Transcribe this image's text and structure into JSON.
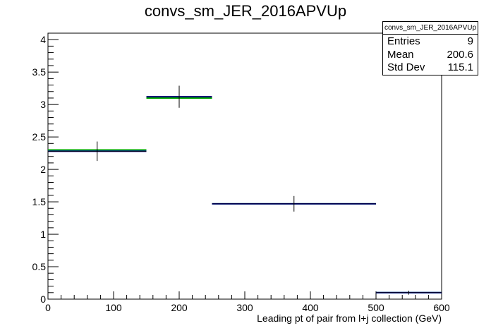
{
  "chart_data": {
    "type": "histogram",
    "title": "convs_sm_JER_2016APVUp",
    "xlabel": "Leading pt of pair from l+j collection (GeV)",
    "ylabel": "",
    "xlim": [
      0,
      600
    ],
    "ylim": [
      0,
      4.1
    ],
    "x_ticks": [
      0,
      100,
      200,
      300,
      400,
      500,
      600
    ],
    "y_ticks": [
      0,
      0.5,
      1,
      1.5,
      2,
      2.5,
      3,
      3.5,
      4
    ],
    "x_tick_labels": [
      "0",
      "100",
      "200",
      "300",
      "400",
      "500",
      "600"
    ],
    "y_tick_labels": [
      "0",
      "0.5",
      "1",
      "1.5",
      "2",
      "2.5",
      "3",
      "3.5",
      "4"
    ],
    "grid": false,
    "bins": [
      {
        "x_low": 0,
        "x_high": 150,
        "value": 2.28,
        "error": 0.15
      },
      {
        "x_low": 150,
        "x_high": 250,
        "value": 3.12,
        "error": 0.17
      },
      {
        "x_low": 250,
        "x_high": 500,
        "value": 1.47,
        "error": 0.12
      },
      {
        "x_low": 500,
        "x_high": 600,
        "value": 0.1,
        "error": 0.03
      }
    ],
    "overlay_series": [
      {
        "color": "#00aa00",
        "values": [
          2.3,
          3.1,
          1.47,
          0.1
        ]
      },
      {
        "color": "#0000cc",
        "values": [
          2.28,
          3.12,
          1.47,
          0.1
        ]
      }
    ],
    "stats": {
      "name": "convs_sm_JER_2016APVUp",
      "rows": [
        {
          "label": "Entries",
          "value": "9"
        },
        {
          "label": "Mean",
          "value": "200.6"
        },
        {
          "label": "Std Dev",
          "value": "115.1"
        }
      ]
    }
  }
}
